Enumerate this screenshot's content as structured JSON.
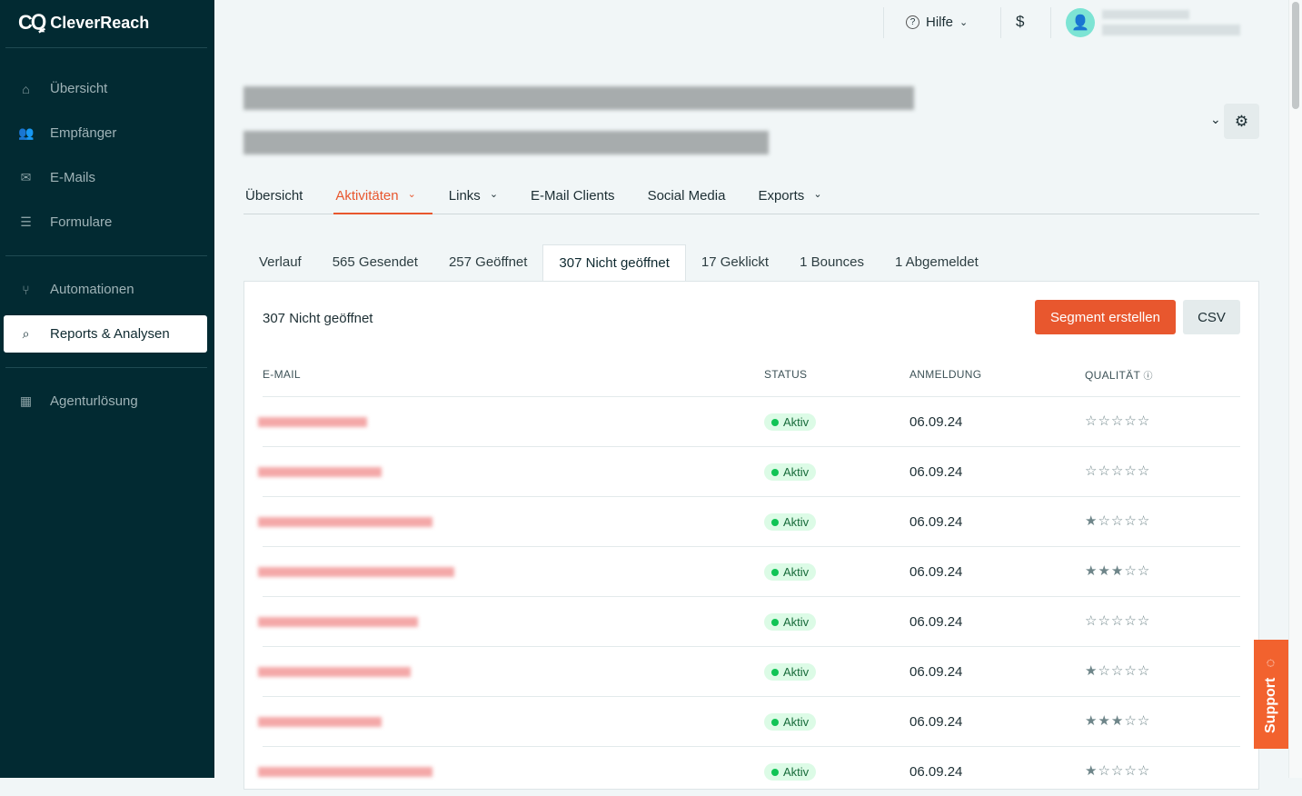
{
  "brand": {
    "name": "CleverReach",
    "logo_mark": "CR"
  },
  "sidebar": {
    "items": [
      {
        "label": "Übersicht",
        "icon": "home-icon",
        "glyph": "⌂"
      },
      {
        "label": "Empfänger",
        "icon": "users-icon",
        "glyph": "👥"
      },
      {
        "label": "E-Mails",
        "icon": "mail-icon",
        "glyph": "✉"
      },
      {
        "label": "Formulare",
        "icon": "form-icon",
        "glyph": "☰"
      },
      {
        "label": "Automationen",
        "icon": "branch-icon",
        "glyph": "⑂"
      },
      {
        "label": "Reports & Analysen",
        "icon": "report-search-icon",
        "glyph": "⌕",
        "active": true
      },
      {
        "label": "Agenturlösung",
        "icon": "building-icon",
        "glyph": "▦"
      }
    ]
  },
  "topbar": {
    "help_label": "Hilfe"
  },
  "tabs": [
    {
      "label": "Übersicht"
    },
    {
      "label": "Aktivitäten",
      "active": true,
      "dropdown": true
    },
    {
      "label": "Links",
      "dropdown": true
    },
    {
      "label": "E-Mail Clients"
    },
    {
      "label": "Social Media"
    },
    {
      "label": "Exports",
      "dropdown": true
    }
  ],
  "subtabs": [
    {
      "label": "Verlauf"
    },
    {
      "label": "565 Gesendet"
    },
    {
      "label": "257 Geöffnet"
    },
    {
      "label": "307 Nicht geöffnet",
      "active": true
    },
    {
      "label": "17 Geklickt"
    },
    {
      "label": "1 Bounces"
    },
    {
      "label": "1 Abgemeldet"
    }
  ],
  "panel": {
    "title": "307 Nicht geöffnet",
    "segment_button": "Segment erstellen",
    "csv_button": "CSV"
  },
  "table": {
    "columns": [
      "E-MAIL",
      "STATUS",
      "ANMELDUNG",
      "QUALITÄT"
    ],
    "rows": [
      {
        "status": "Aktiv",
        "date": "06.09.24",
        "rating": 0
      },
      {
        "status": "Aktiv",
        "date": "06.09.24",
        "rating": 0
      },
      {
        "status": "Aktiv",
        "date": "06.09.24",
        "rating": 1
      },
      {
        "status": "Aktiv",
        "date": "06.09.24",
        "rating": 3
      },
      {
        "status": "Aktiv",
        "date": "06.09.24",
        "rating": 0
      },
      {
        "status": "Aktiv",
        "date": "06.09.24",
        "rating": 1
      },
      {
        "status": "Aktiv",
        "date": "06.09.24",
        "rating": 3
      },
      {
        "status": "Aktiv",
        "date": "06.09.24",
        "rating": 1
      }
    ]
  },
  "support_label": "Support",
  "colors": {
    "accent": "#e8572e",
    "sidebar": "#022a32",
    "status_active": "#10c455"
  }
}
